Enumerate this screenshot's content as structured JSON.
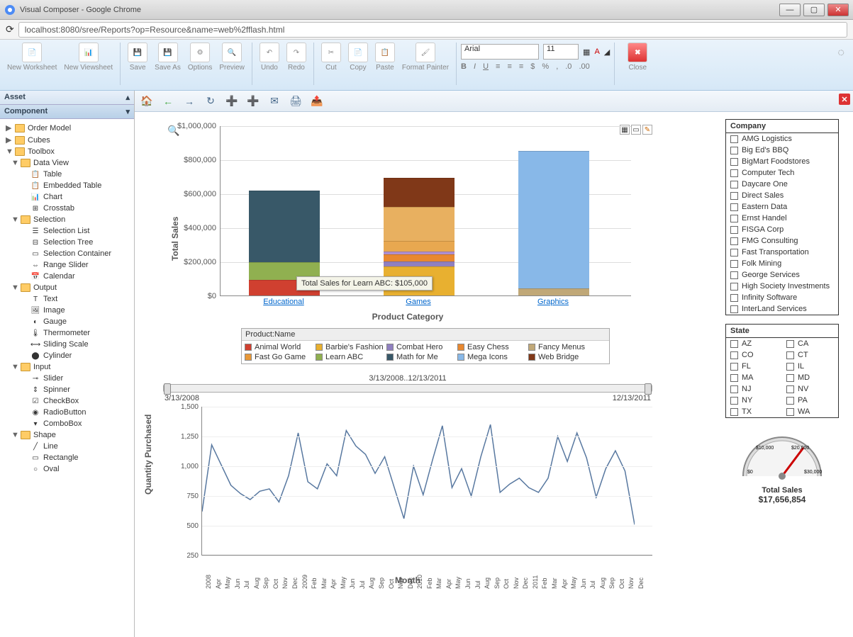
{
  "window": {
    "title": "Visual Composer - Google Chrome"
  },
  "address": {
    "url": "localhost:8080/sree/Reports?op=Resource&name=web%2fflash.html"
  },
  "ribbon": {
    "new_ws": "New Worksheet",
    "new_vs": "New Viewsheet",
    "save": "Save",
    "saveas": "Save As",
    "options": "Options",
    "preview": "Preview",
    "undo": "Undo",
    "redo": "Redo",
    "cut": "Cut",
    "copy": "Copy",
    "paste": "Paste",
    "fmt": "Format Painter",
    "font": "Arial",
    "size": "11",
    "close": "Close"
  },
  "sidebar": {
    "asset": "Asset",
    "component": "Component",
    "nodes": [
      {
        "lvl": 0,
        "tw": "▶",
        "ico": "fold",
        "label": "Order Model"
      },
      {
        "lvl": 0,
        "tw": "▶",
        "ico": "fold",
        "label": "Cubes"
      },
      {
        "lvl": 0,
        "tw": "▼",
        "ico": "fold",
        "label": "Toolbox"
      },
      {
        "lvl": 1,
        "tw": "▼",
        "ico": "fold",
        "label": "Data View"
      },
      {
        "lvl": 2,
        "tw": "",
        "ico": "📋",
        "label": "Table"
      },
      {
        "lvl": 2,
        "tw": "",
        "ico": "📋",
        "label": "Embedded Table"
      },
      {
        "lvl": 2,
        "tw": "",
        "ico": "📊",
        "label": "Chart"
      },
      {
        "lvl": 2,
        "tw": "",
        "ico": "⊞",
        "label": "Crosstab"
      },
      {
        "lvl": 1,
        "tw": "▼",
        "ico": "fold",
        "label": "Selection"
      },
      {
        "lvl": 2,
        "tw": "",
        "ico": "☰",
        "label": "Selection List"
      },
      {
        "lvl": 2,
        "tw": "",
        "ico": "⊟",
        "label": "Selection Tree"
      },
      {
        "lvl": 2,
        "tw": "",
        "ico": "▭",
        "label": "Selection Container"
      },
      {
        "lvl": 2,
        "tw": "",
        "ico": "⇔",
        "label": "Range Slider"
      },
      {
        "lvl": 2,
        "tw": "",
        "ico": "📅",
        "label": "Calendar"
      },
      {
        "lvl": 1,
        "tw": "▼",
        "ico": "fold",
        "label": "Output"
      },
      {
        "lvl": 2,
        "tw": "",
        "ico": "T",
        "label": "Text"
      },
      {
        "lvl": 2,
        "tw": "",
        "ico": "🖼",
        "label": "Image"
      },
      {
        "lvl": 2,
        "tw": "",
        "ico": "◐",
        "label": "Gauge"
      },
      {
        "lvl": 2,
        "tw": "",
        "ico": "🌡",
        "label": "Thermometer"
      },
      {
        "lvl": 2,
        "tw": "",
        "ico": "⟷",
        "label": "Sliding Scale"
      },
      {
        "lvl": 2,
        "tw": "",
        "ico": "⬤",
        "label": "Cylinder"
      },
      {
        "lvl": 1,
        "tw": "▼",
        "ico": "fold",
        "label": "Input"
      },
      {
        "lvl": 2,
        "tw": "",
        "ico": "⊸",
        "label": "Slider"
      },
      {
        "lvl": 2,
        "tw": "",
        "ico": "⇕",
        "label": "Spinner"
      },
      {
        "lvl": 2,
        "tw": "",
        "ico": "☑",
        "label": "CheckBox"
      },
      {
        "lvl": 2,
        "tw": "",
        "ico": "◉",
        "label": "RadioButton"
      },
      {
        "lvl": 2,
        "tw": "",
        "ico": "▾",
        "label": "ComboBox"
      },
      {
        "lvl": 1,
        "tw": "▼",
        "ico": "fold",
        "label": "Shape"
      },
      {
        "lvl": 2,
        "tw": "",
        "ico": "╱",
        "label": "Line"
      },
      {
        "lvl": 2,
        "tw": "",
        "ico": "▭",
        "label": "Rectangle"
      },
      {
        "lvl": 2,
        "tw": "",
        "ico": "○",
        "label": "Oval"
      }
    ]
  },
  "barchart": {
    "ylabel": "Total Sales",
    "xlabel": "Product Category",
    "ymax": 1000000,
    "yticks": [
      "$1,000,000",
      "$800,000",
      "$600,000",
      "$400,000",
      "$200,000",
      "$0"
    ],
    "categories": [
      "Educational",
      "Games",
      "Graphics"
    ],
    "series": [
      {
        "name": "Animal World",
        "color": "#d04030"
      },
      {
        "name": "Barbie's Fashion",
        "color": "#e8b030"
      },
      {
        "name": "Combat Hero",
        "color": "#9080c0"
      },
      {
        "name": "Easy Chess",
        "color": "#e88830"
      },
      {
        "name": "Fancy Menus",
        "color": "#c0a878"
      },
      {
        "name": "Fast Go Game",
        "color": "#e89838"
      },
      {
        "name": "Learn ABC",
        "color": "#90b050"
      },
      {
        "name": "Math for Me",
        "color": "#385868"
      },
      {
        "name": "Mega Icons",
        "color": "#88b8e8"
      },
      {
        "name": "Web Bridge",
        "color": "#803818"
      }
    ],
    "stacks": [
      [
        {
          "v": 90000,
          "c": "#d04030"
        },
        {
          "v": 105000,
          "c": "#90b050"
        },
        {
          "v": 420000,
          "c": "#385868"
        }
      ],
      [
        {
          "v": 170000,
          "c": "#e8b030"
        },
        {
          "v": 30000,
          "c": "#9080c0"
        },
        {
          "v": 40000,
          "c": "#e88830"
        },
        {
          "v": 20000,
          "c": "#b090d0"
        },
        {
          "v": 60000,
          "c": "#e8a850"
        },
        {
          "v": 200000,
          "c": "#e8b060"
        },
        {
          "v": 170000,
          "c": "#803818"
        }
      ],
      [
        {
          "v": 40000,
          "c": "#c0a878"
        },
        {
          "v": 810000,
          "c": "#88b8e8"
        }
      ]
    ],
    "tooltip": "Total Sales for Learn ABC: $105,000",
    "legend_title": "Product:Name"
  },
  "rangeslider": {
    "range_text": "3/13/2008..12/13/2011",
    "start": "3/13/2008",
    "end": "12/13/2011"
  },
  "linechart": {
    "ylabel": "Quantity Purchased",
    "xlabel": "Month",
    "ymin": 250,
    "ymax": 1500,
    "yticks": [
      "1,500",
      "1,250",
      "1,000",
      "750",
      "500",
      "250"
    ],
    "xticks": [
      "2008",
      "Apr",
      "May",
      "Jun",
      "Jul",
      "Aug",
      "Sep",
      "Oct",
      "Nov",
      "Dec",
      "2009",
      "Feb",
      "Mar",
      "Apr",
      "May",
      "Jun",
      "Jul",
      "Aug",
      "Sep",
      "Oct",
      "Nov",
      "Dec",
      "2010",
      "Feb",
      "Mar",
      "Apr",
      "May",
      "Jun",
      "Jul",
      "Aug",
      "Sep",
      "Oct",
      "Nov",
      "Dec",
      "2011",
      "Feb",
      "Mar",
      "Apr",
      "May",
      "Jun",
      "Jul",
      "Aug",
      "Sep",
      "Oct",
      "Nov",
      "Dec"
    ],
    "values": [
      620,
      1180,
      1010,
      840,
      770,
      720,
      790,
      810,
      700,
      920,
      1280,
      870,
      810,
      1020,
      920,
      1300,
      1170,
      1100,
      940,
      1080,
      820,
      560,
      1000,
      760,
      1060,
      1340,
      820,
      980,
      750,
      1080,
      1350,
      780,
      850,
      900,
      820,
      780,
      900,
      1250,
      1040,
      1280,
      1070,
      740,
      980,
      1130,
      960,
      510
    ],
    "line_color": "#5878a0"
  },
  "company_filter": {
    "title": "Company",
    "items": [
      "AMG Logistics",
      "Big Ed's BBQ",
      "BigMart Foodstores",
      "Computer Tech",
      "Daycare One",
      "Direct Sales",
      "Eastern Data",
      "Ernst Handel",
      "FISGA Corp",
      "FMG Consulting",
      "Fast Transportation",
      "Folk Mining",
      "George Services",
      "High Society Investments",
      "Infinity Software",
      "InterLand Services"
    ]
  },
  "state_filter": {
    "title": "State",
    "col1": [
      "AZ",
      "CO",
      "FL",
      "MA",
      "NJ",
      "NY",
      "TX"
    ],
    "col2": [
      "CA",
      "CT",
      "IL",
      "MD",
      "NV",
      "PA",
      "WA"
    ]
  },
  "gauge": {
    "label": "Total Sales",
    "value": "$17,656,854",
    "ticks": [
      "$0",
      "$10,000",
      "$20,000",
      "$30,000"
    ]
  }
}
